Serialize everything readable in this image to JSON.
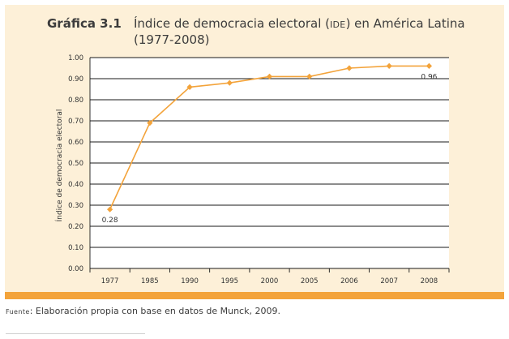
{
  "figure": {
    "label": "Gráfica 3.1",
    "title_before": "Índice de democracia electoral (",
    "title_abbr": "IDE",
    "title_after": ") en América Latina",
    "title_line2": "(1977-2008)"
  },
  "chart_data": {
    "type": "line",
    "title": "Índice de democracia electoral (IDE) en América Latina (1977-2008)",
    "xlabel": "",
    "ylabel": "Índice de democracia electoral",
    "categories": [
      "1977",
      "1985",
      "1990",
      "1995",
      "2000",
      "2005",
      "2006",
      "2007",
      "2008"
    ],
    "series": [
      {
        "name": "IDE",
        "values": [
          0.28,
          0.69,
          0.86,
          0.88,
          0.91,
          0.91,
          0.95,
          0.96,
          0.96
        ]
      }
    ],
    "ylim": [
      0,
      1
    ],
    "yticks": [
      "0.00",
      "0.10",
      "0.20",
      "0.30",
      "0.40",
      "0.50",
      "0.60",
      "0.70",
      "0.80",
      "0.90",
      "1.00"
    ],
    "annotations": [
      {
        "category": "1977",
        "text": "0.28"
      },
      {
        "category": "2008",
        "text": "0.96"
      }
    ],
    "grid": true,
    "colors": {
      "line": "#f3a33a",
      "grid": "#1a1a1a",
      "plot_bg": "#ffffff",
      "panel_bg": "#fdf0d8"
    }
  },
  "source": {
    "prefix": "Fuente",
    "text": ": Elaboración propia con base en datos de Munck, 2009."
  }
}
